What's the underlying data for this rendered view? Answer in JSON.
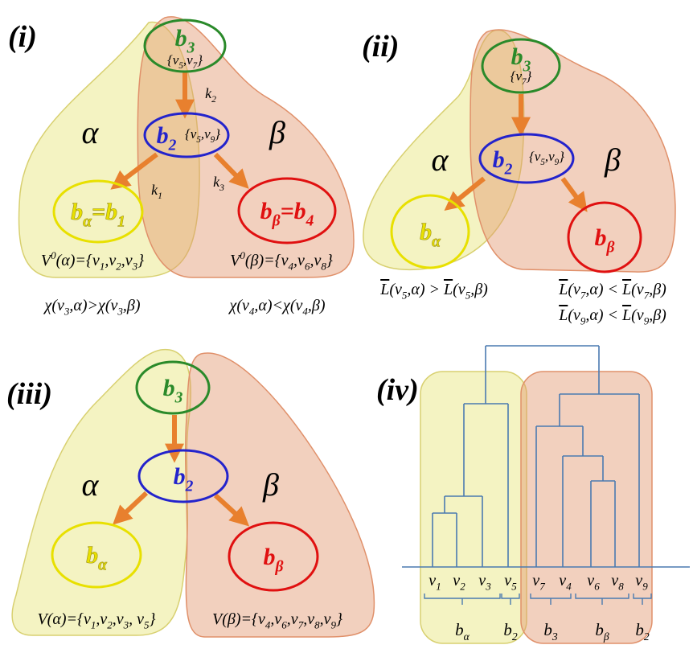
{
  "panels": [
    {
      "label": "(i)",
      "alpha": "α",
      "beta": "β",
      "nodes": [
        {
          "label": [
            "b",
            {
              "sub": "3"
            }
          ],
          "set": [
            "{v",
            {
              "sub": "5"
            },
            ",v",
            {
              "sub": "7"
            },
            "}"
          ]
        },
        {
          "label": [
            "b",
            {
              "sub": "2"
            }
          ],
          "set": [
            "{v",
            {
              "sub": "5"
            },
            ",v",
            {
              "sub": "9"
            },
            "}"
          ]
        },
        {
          "label": [
            "b",
            {
              "sub": "α"
            },
            "=b",
            {
              "sub": "1"
            }
          ]
        },
        {
          "label": [
            "b",
            {
              "sub": "β"
            },
            "=b",
            {
              "sub": "4"
            }
          ]
        }
      ],
      "edge_labels": [
        [
          "k",
          {
            "sub": "2"
          }
        ],
        [
          "k",
          {
            "sub": "1"
          }
        ],
        [
          "k",
          {
            "sub": "3"
          }
        ]
      ],
      "notes": [
        [
          "V",
          {
            "sup": "0"
          },
          "(α)={v",
          {
            "sub": "1"
          },
          ",v",
          {
            "sub": "2"
          },
          ",v",
          {
            "sub": "3"
          },
          "}"
        ],
        [
          "V",
          {
            "sup": "0"
          },
          "(β)={v",
          {
            "sub": "4"
          },
          ",v",
          {
            "sub": "6"
          },
          ",v",
          {
            "sub": "8"
          },
          "}"
        ],
        [
          "χ(v",
          {
            "sub": "3"
          },
          ",α)>χ(v",
          {
            "sub": "3"
          },
          ",β)"
        ],
        [
          "χ(v",
          {
            "sub": "4"
          },
          ",α)<χ(v",
          {
            "sub": "4"
          },
          ",β)"
        ]
      ]
    },
    {
      "label": "(ii)",
      "alpha": "α",
      "beta": "β",
      "nodes": [
        {
          "label": [
            "b",
            {
              "sub": "3"
            }
          ],
          "set": [
            "{v",
            {
              "sub": "7"
            },
            "}"
          ]
        },
        {
          "label": [
            "b",
            {
              "sub": "2"
            }
          ],
          "set": [
            "{v",
            {
              "sub": "5"
            },
            ",v",
            {
              "sub": "9"
            },
            "}"
          ]
        },
        {
          "label": [
            "b",
            {
              "sub": "α"
            }
          ]
        },
        {
          "label": [
            "b",
            {
              "sub": "β"
            }
          ]
        }
      ],
      "notes": [
        [
          {
            "over": "L"
          },
          "(v",
          {
            "sub": "5"
          },
          ",α) > ",
          {
            "over": "L"
          },
          "(v",
          {
            "sub": "5"
          },
          ",β)"
        ],
        [
          {
            "over": "L"
          },
          "(v",
          {
            "sub": "7"
          },
          ",α) < ",
          {
            "over": "L"
          },
          "(v",
          {
            "sub": "7"
          },
          ",β)"
        ],
        [
          {
            "over": "L"
          },
          "(v",
          {
            "sub": "9"
          },
          ",α) < ",
          {
            "over": "L"
          },
          "(v",
          {
            "sub": "9"
          },
          ",β)"
        ]
      ]
    },
    {
      "label": "(iii)",
      "alpha": "α",
      "beta": "β",
      "nodes": [
        {
          "label": [
            "b",
            {
              "sub": "3"
            }
          ]
        },
        {
          "label": [
            "b",
            {
              "sub": "2"
            }
          ]
        },
        {
          "label": [
            "b",
            {
              "sub": "α"
            }
          ]
        },
        {
          "label": [
            "b",
            {
              "sub": "β"
            }
          ]
        }
      ],
      "notes": [
        [
          "V(α)={v",
          {
            "sub": "1"
          },
          ",v",
          {
            "sub": "2"
          },
          ",v",
          {
            "sub": "3"
          },
          ", v",
          {
            "sub": "5"
          },
          "}"
        ],
        [
          "V(β)={v",
          {
            "sub": "4"
          },
          ",v",
          {
            "sub": "6"
          },
          ",v",
          {
            "sub": "7"
          },
          ",v",
          {
            "sub": "8"
          },
          ",v",
          {
            "sub": "9"
          },
          "}"
        ]
      ]
    },
    {
      "label": "(iv)",
      "leaves": [
        [
          "v",
          {
            "sub": "1"
          }
        ],
        [
          "v",
          {
            "sub": "2"
          }
        ],
        [
          "v",
          {
            "sub": "3"
          }
        ],
        [
          "v",
          {
            "sub": "5"
          }
        ],
        [
          "v",
          {
            "sub": "7"
          }
        ],
        [
          "v",
          {
            "sub": "4"
          }
        ],
        [
          "v",
          {
            "sub": "6"
          }
        ],
        [
          "v",
          {
            "sub": "8"
          }
        ],
        [
          "v",
          {
            "sub": "9"
          }
        ]
      ],
      "groups": [
        [
          "b",
          {
            "sub": "α"
          }
        ],
        [
          "b",
          {
            "sub": "2"
          }
        ],
        [
          "b",
          {
            "sub": "3"
          }
        ],
        [
          "b",
          {
            "sub": "β"
          }
        ],
        [
          "b",
          {
            "sub": "2"
          }
        ]
      ]
    }
  ]
}
